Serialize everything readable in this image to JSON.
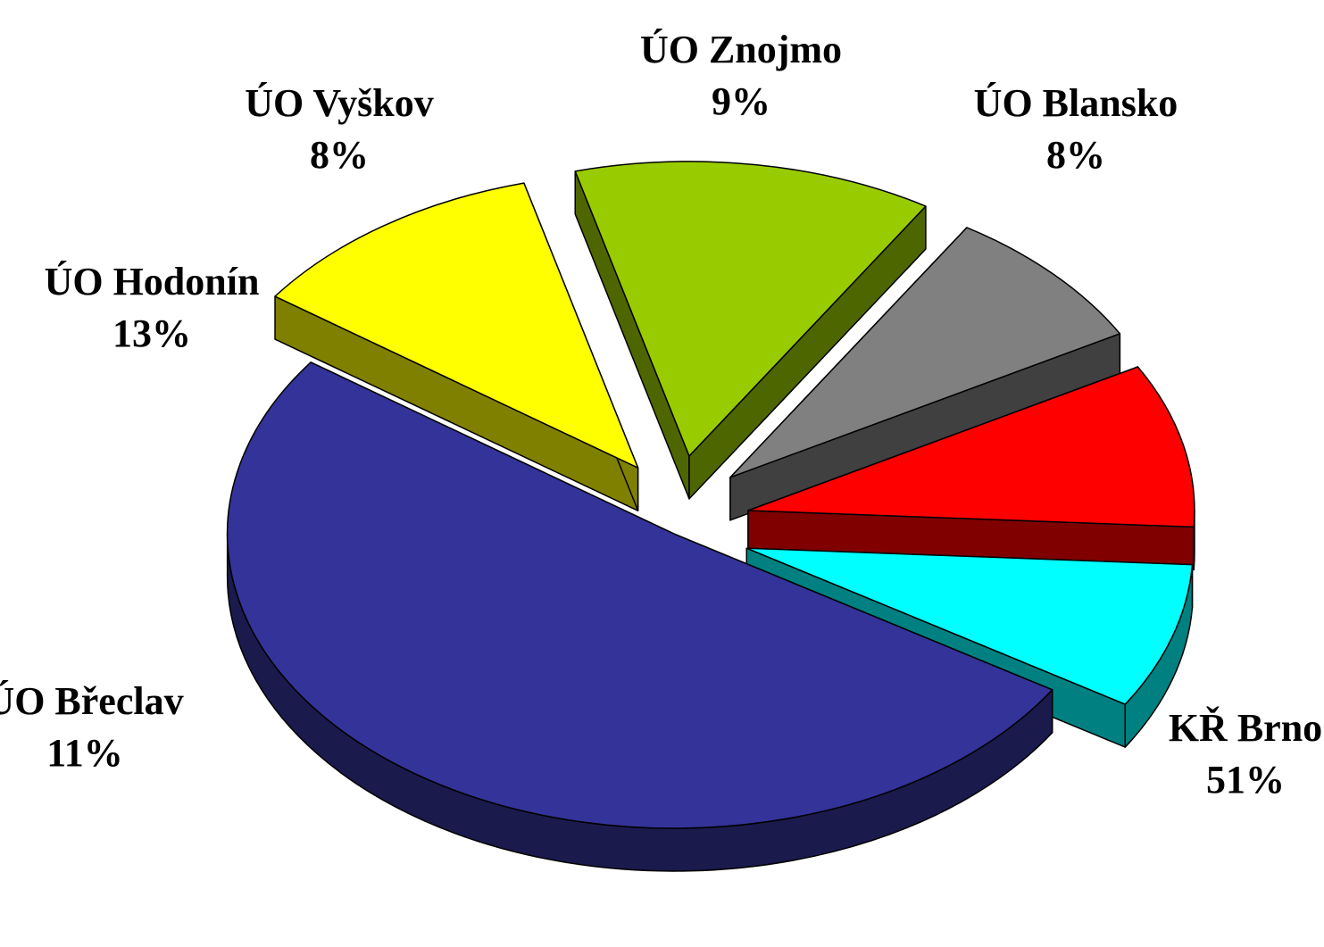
{
  "chart_data": {
    "type": "pie",
    "title": "",
    "style": "3d-exploded",
    "labels_format": "category and percent",
    "slices": [
      {
        "name": "KŘ Brno",
        "percent_label": "51%",
        "value": 51,
        "color": "#333399",
        "side_color": "#1a1a4d"
      },
      {
        "name": "ÚO Břeclav",
        "percent_label": "11%",
        "value": 11,
        "color": "#ffff00",
        "side_color": "#808000"
      },
      {
        "name": "ÚO Hodonín",
        "percent_label": "13%",
        "value": 13,
        "color": "#99cc00",
        "side_color": "#4d6600"
      },
      {
        "name": "ÚO Vyškov",
        "percent_label": "8%",
        "value": 8,
        "color": "#808080",
        "side_color": "#404040"
      },
      {
        "name": "ÚO Znojmo",
        "percent_label": "9%",
        "value": 9,
        "color": "#ff0000",
        "side_color": "#800000"
      },
      {
        "name": "ÚO Blansko",
        "percent_label": "8%",
        "value": 8,
        "color": "#00ffff",
        "side_color": "#008080"
      }
    ]
  }
}
